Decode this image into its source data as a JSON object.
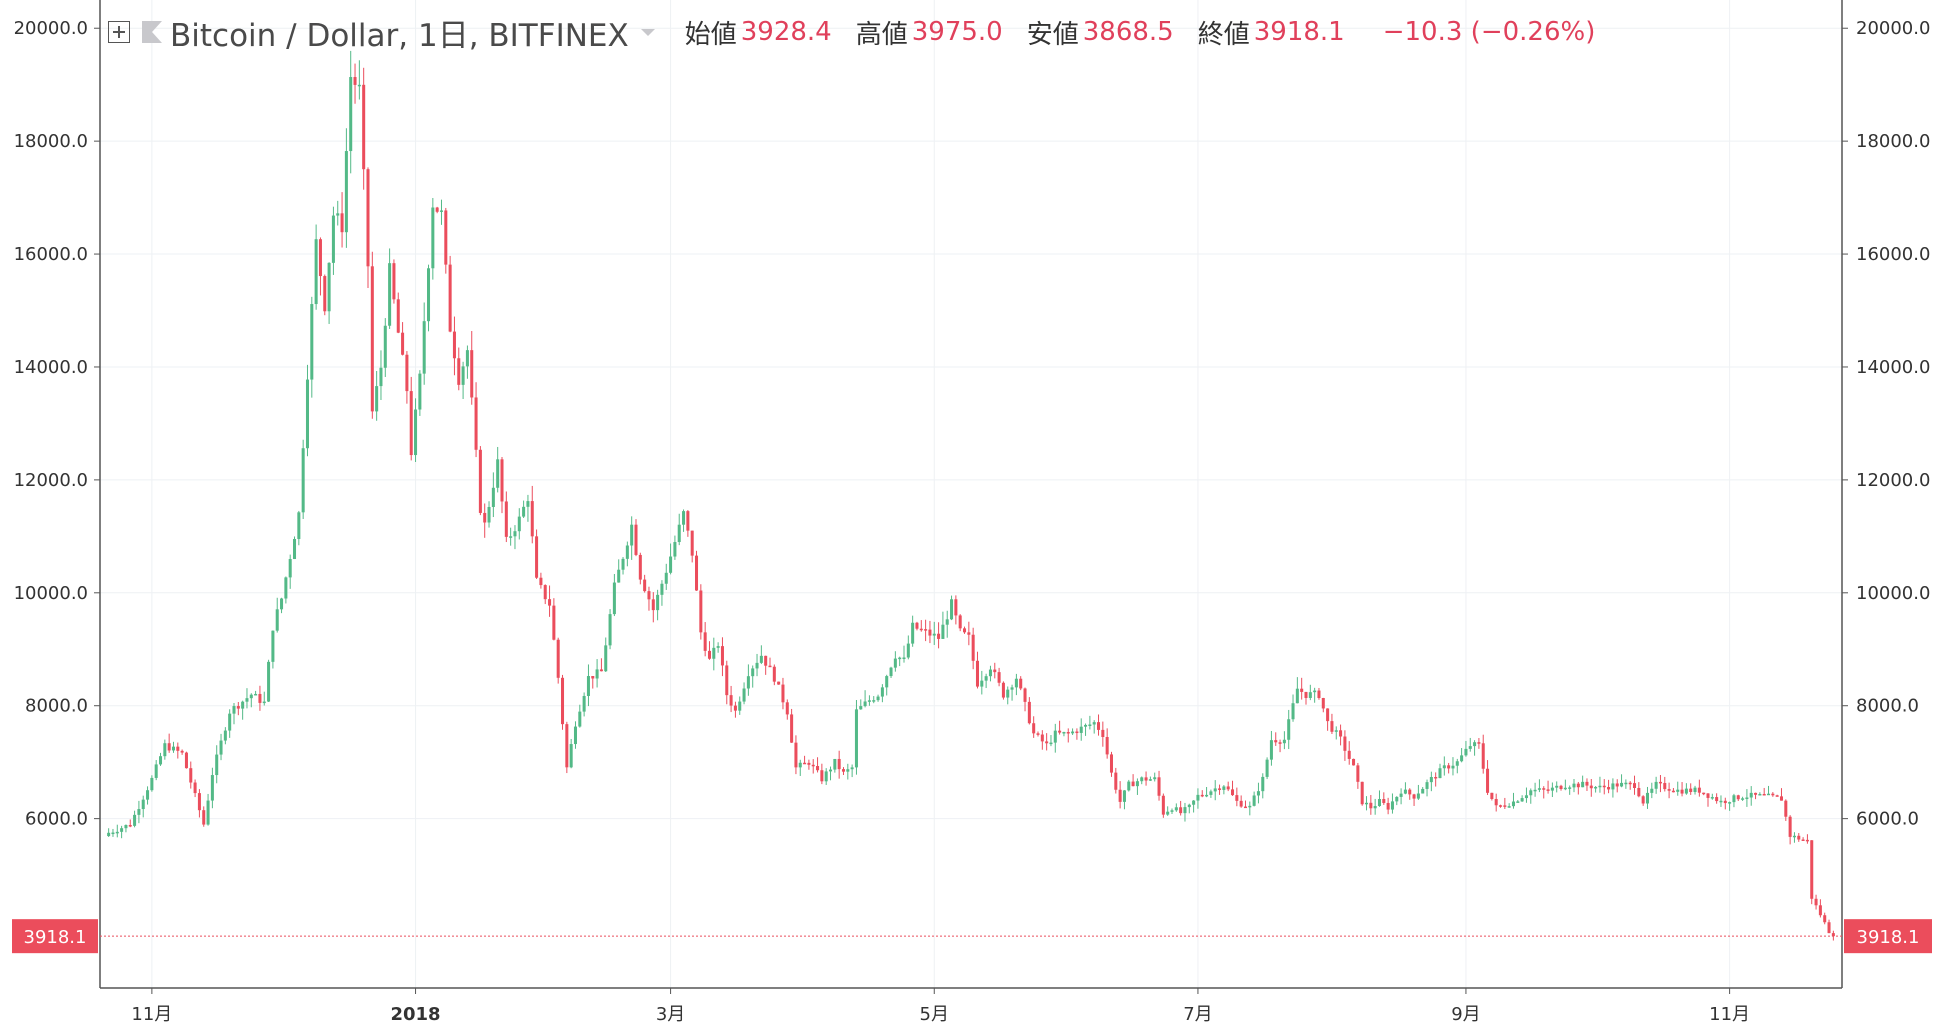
{
  "header": {
    "symbol": "Bitcoin / Dollar, 1日, BITFINEX",
    "open_label": "始値",
    "open_value": "3928.4",
    "high_label": "高値",
    "high_value": "3975.0",
    "low_label": "安値",
    "low_value": "3868.5",
    "close_label": "終値",
    "close_value": "3918.1",
    "change": "−10.3 (−0.26%)",
    "icons": [
      "add-compare-icon",
      "symbol-flag-icon",
      "dropdown-caret-icon"
    ]
  },
  "colors": {
    "up": "#53b987",
    "down": "#eb4d5c",
    "grid": "#eef1f4",
    "axis": "#555555",
    "price_label_bg": "#eb4d5c"
  },
  "chart_data": {
    "type": "candlestick",
    "title": "Bitcoin / Dollar, 1日, BITFINEX",
    "ylim": [
      3000,
      20500
    ],
    "y_ticks": [
      6000,
      8000,
      10000,
      12000,
      14000,
      16000,
      18000,
      20000
    ],
    "y_tick_labels": [
      "6000.0",
      "8000.0",
      "10000.0",
      "12000.0",
      "14000.0",
      "16000.0",
      "18000.0",
      "20000.0"
    ],
    "x_range": [
      "2017-10-20",
      "2018-11-27"
    ],
    "x_ticks": [
      {
        "date": "2017-11-01",
        "label": "11月",
        "bold": false
      },
      {
        "date": "2018-01-01",
        "label": "2018",
        "bold": true
      },
      {
        "date": "2018-03-01",
        "label": "3月",
        "bold": false
      },
      {
        "date": "2018-05-01",
        "label": "5月",
        "bold": false
      },
      {
        "date": "2018-07-01",
        "label": "7月",
        "bold": false
      },
      {
        "date": "2018-09-01",
        "label": "9月",
        "bold": false
      },
      {
        "date": "2018-11-01",
        "label": "11月",
        "bold": false
      }
    ],
    "last_price": 3918.1,
    "last_price_label": "3918.1",
    "grid": true,
    "close_series": [
      [
        "2017-10-22",
        5750
      ],
      [
        "2017-10-27",
        5900
      ],
      [
        "2017-11-01",
        6700
      ],
      [
        "2017-11-04",
        7300
      ],
      [
        "2017-11-08",
        7150
      ],
      [
        "2017-11-11",
        6400
      ],
      [
        "2017-11-13",
        5900
      ],
      [
        "2017-11-15",
        6800
      ],
      [
        "2017-11-19",
        7900
      ],
      [
        "2017-11-24",
        8200
      ],
      [
        "2017-11-27",
        8050
      ],
      [
        "2017-11-29",
        9400
      ],
      [
        "2017-12-01",
        9900
      ],
      [
        "2017-12-05",
        11400
      ],
      [
        "2017-12-07",
        13900
      ],
      [
        "2017-12-09",
        16200
      ],
      [
        "2017-12-11",
        15100
      ],
      [
        "2017-12-13",
        16700
      ],
      [
        "2017-12-15",
        16500
      ],
      [
        "2017-12-17",
        19150
      ],
      [
        "2017-12-19",
        18900
      ],
      [
        "2017-12-21",
        15800
      ],
      [
        "2017-12-22",
        13200
      ],
      [
        "2017-12-24",
        14000
      ],
      [
        "2017-12-26",
        15700
      ],
      [
        "2017-12-28",
        14600
      ],
      [
        "2017-12-30",
        13600
      ],
      [
        "2017-12-31",
        12500
      ],
      [
        "2018-01-02",
        13800
      ],
      [
        "2018-01-05",
        16900
      ],
      [
        "2018-01-07",
        16700
      ],
      [
        "2018-01-09",
        14700
      ],
      [
        "2018-01-11",
        13800
      ],
      [
        "2018-01-13",
        14300
      ],
      [
        "2018-01-16",
        11500
      ],
      [
        "2018-01-17",
        11200
      ],
      [
        "2018-01-20",
        12300
      ],
      [
        "2018-01-22",
        10900
      ],
      [
        "2018-01-25",
        11300
      ],
      [
        "2018-01-27",
        11700
      ],
      [
        "2018-01-29",
        10200
      ],
      [
        "2018-02-01",
        9800
      ],
      [
        "2018-02-03",
        8500
      ],
      [
        "2018-02-05",
        6900
      ],
      [
        "2018-02-07",
        7700
      ],
      [
        "2018-02-10",
        8500
      ],
      [
        "2018-02-13",
        8600
      ],
      [
        "2018-02-16",
        10100
      ],
      [
        "2018-02-20",
        11200
      ],
      [
        "2018-02-22",
        10300
      ],
      [
        "2018-02-25",
        9700
      ],
      [
        "2018-02-28",
        10400
      ],
      [
        "2018-03-04",
        11400
      ],
      [
        "2018-03-06",
        10700
      ],
      [
        "2018-03-08",
        9300
      ],
      [
        "2018-03-10",
        8800
      ],
      [
        "2018-03-12",
        9100
      ],
      [
        "2018-03-14",
        8200
      ],
      [
        "2018-03-16",
        7900
      ],
      [
        "2018-03-19",
        8600
      ],
      [
        "2018-03-22",
        8900
      ],
      [
        "2018-03-25",
        8500
      ],
      [
        "2018-03-28",
        7900
      ],
      [
        "2018-03-30",
        6900
      ],
      [
        "2018-04-02",
        7000
      ],
      [
        "2018-04-05",
        6700
      ],
      [
        "2018-04-08",
        7000
      ],
      [
        "2018-04-10",
        6800
      ],
      [
        "2018-04-12",
        6900
      ],
      [
        "2018-04-13",
        7900
      ],
      [
        "2018-04-16",
        8100
      ],
      [
        "2018-04-18",
        8200
      ],
      [
        "2018-04-22",
        8900
      ],
      [
        "2018-04-24",
        8800
      ],
      [
        "2018-04-26",
        9400
      ],
      [
        "2018-04-29",
        9300
      ],
      [
        "2018-05-02",
        9200
      ],
      [
        "2018-05-05",
        9800
      ],
      [
        "2018-05-07",
        9300
      ],
      [
        "2018-05-09",
        9200
      ],
      [
        "2018-05-11",
        8400
      ],
      [
        "2018-05-14",
        8700
      ],
      [
        "2018-05-17",
        8200
      ],
      [
        "2018-05-20",
        8500
      ],
      [
        "2018-05-22",
        8000
      ],
      [
        "2018-05-24",
        7500
      ],
      [
        "2018-05-27",
        7300
      ],
      [
        "2018-05-29",
        7500
      ],
      [
        "2018-06-01",
        7500
      ],
      [
        "2018-06-04",
        7600
      ],
      [
        "2018-06-07",
        7700
      ],
      [
        "2018-06-09",
        7500
      ],
      [
        "2018-06-11",
        6800
      ],
      [
        "2018-06-13",
        6300
      ],
      [
        "2018-06-15",
        6600
      ],
      [
        "2018-06-18",
        6700
      ],
      [
        "2018-06-21",
        6700
      ],
      [
        "2018-06-23",
        6100
      ],
      [
        "2018-06-25",
        6200
      ],
      [
        "2018-06-27",
        6100
      ],
      [
        "2018-06-29",
        6200
      ],
      [
        "2018-07-01",
        6400
      ],
      [
        "2018-07-04",
        6500
      ],
      [
        "2018-07-07",
        6600
      ],
      [
        "2018-07-10",
        6300
      ],
      [
        "2018-07-13",
        6200
      ],
      [
        "2018-07-16",
        6700
      ],
      [
        "2018-07-18",
        7400
      ],
      [
        "2018-07-21",
        7400
      ],
      [
        "2018-07-24",
        8300
      ],
      [
        "2018-07-26",
        8200
      ],
      [
        "2018-07-29",
        8200
      ],
      [
        "2018-07-31",
        7700
      ],
      [
        "2018-08-03",
        7400
      ],
      [
        "2018-08-06",
        6900
      ],
      [
        "2018-08-08",
        6300
      ],
      [
        "2018-08-10",
        6200
      ],
      [
        "2018-08-12",
        6300
      ],
      [
        "2018-08-14",
        6200
      ],
      [
        "2018-08-17",
        6500
      ],
      [
        "2018-08-20",
        6400
      ],
      [
        "2018-08-24",
        6700
      ],
      [
        "2018-08-27",
        6900
      ],
      [
        "2018-08-30",
        7000
      ],
      [
        "2018-09-02",
        7300
      ],
      [
        "2018-09-04",
        7300
      ],
      [
        "2018-09-06",
        6500
      ],
      [
        "2018-09-08",
        6200
      ],
      [
        "2018-09-12",
        6300
      ],
      [
        "2018-09-16",
        6500
      ],
      [
        "2018-09-20",
        6500
      ],
      [
        "2018-09-24",
        6600
      ],
      [
        "2018-09-28",
        6600
      ],
      [
        "2018-10-02",
        6550
      ],
      [
        "2018-10-06",
        6600
      ],
      [
        "2018-10-10",
        6600
      ],
      [
        "2018-10-12",
        6300
      ],
      [
        "2018-10-15",
        6600
      ],
      [
        "2018-10-20",
        6500
      ],
      [
        "2018-10-25",
        6500
      ],
      [
        "2018-10-30",
        6300
      ],
      [
        "2018-11-04",
        6400
      ],
      [
        "2018-11-09",
        6400
      ],
      [
        "2018-11-13",
        6350
      ],
      [
        "2018-11-15",
        5700
      ],
      [
        "2018-11-19",
        5600
      ],
      [
        "2018-11-20",
        4600
      ],
      [
        "2018-11-22",
        4300
      ],
      [
        "2018-11-24",
        4000
      ],
      [
        "2018-11-25",
        3918.1
      ]
    ]
  }
}
